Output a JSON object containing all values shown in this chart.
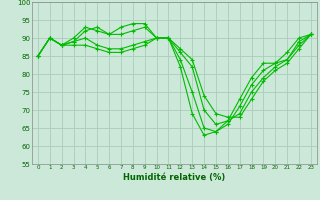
{
  "title": "",
  "xlabel": "Humidité relative (%)",
  "ylabel": "",
  "bg_color": "#cce8d8",
  "grid_color": "#aaccbb",
  "line_color": "#00bb00",
  "xlim": [
    -0.5,
    23.5
  ],
  "ylim": [
    55,
    100
  ],
  "yticks": [
    55,
    60,
    65,
    70,
    75,
    80,
    85,
    90,
    95,
    100
  ],
  "xticks": [
    0,
    1,
    2,
    3,
    4,
    5,
    6,
    7,
    8,
    9,
    10,
    11,
    12,
    13,
    14,
    15,
    16,
    17,
    18,
    19,
    20,
    21,
    22,
    23
  ],
  "series": [
    [
      85,
      90,
      88,
      89,
      92,
      93,
      91,
      93,
      94,
      94,
      90,
      90,
      82,
      69,
      63,
      64,
      67,
      73,
      79,
      83,
      83,
      86,
      90,
      91
    ],
    [
      85,
      90,
      88,
      90,
      93,
      92,
      91,
      91,
      92,
      93,
      90,
      90,
      84,
      75,
      65,
      64,
      66,
      71,
      77,
      81,
      83,
      84,
      89,
      91
    ],
    [
      85,
      90,
      88,
      89,
      90,
      88,
      87,
      87,
      88,
      89,
      90,
      90,
      86,
      82,
      70,
      66,
      67,
      69,
      75,
      79,
      82,
      84,
      88,
      91
    ],
    [
      85,
      90,
      88,
      88,
      88,
      87,
      86,
      86,
      87,
      88,
      90,
      90,
      87,
      84,
      74,
      69,
      68,
      68,
      73,
      78,
      81,
      83,
      87,
      91
    ]
  ]
}
